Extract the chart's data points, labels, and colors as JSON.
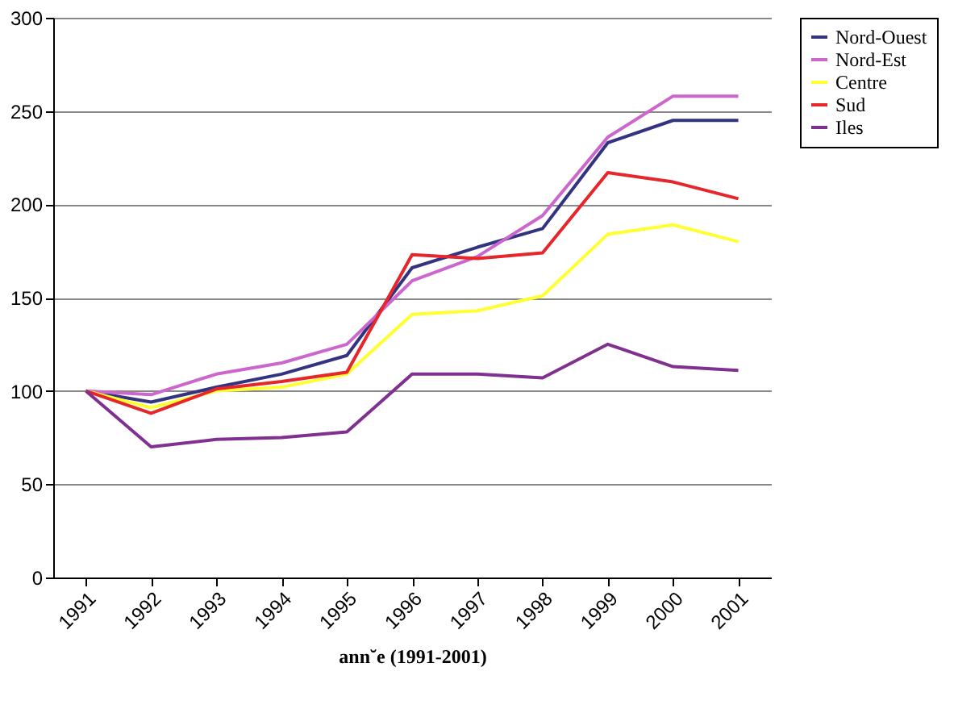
{
  "chart_data": {
    "type": "line",
    "xlabel": "ann˘e (1991-2001)",
    "categories": [
      "1991",
      "1992",
      "1993",
      "1994",
      "1995",
      "1996",
      "1997",
      "1998",
      "1999",
      "2000",
      "2001"
    ],
    "series": [
      {
        "name": "Nord-Ouest",
        "color": "#333380",
        "values": [
          100,
          94,
          102,
          109,
          119,
          166,
          177,
          187,
          233,
          245,
          245
        ]
      },
      {
        "name": "Nord-Est",
        "color": "#cc66cc",
        "values": [
          100,
          98,
          109,
          115,
          125,
          159,
          172,
          194,
          236,
          258,
          258
        ]
      },
      {
        "name": "Centre",
        "color": "#ffff33",
        "values": [
          100,
          91,
          100,
          102,
          109,
          141,
          143,
          151,
          184,
          189,
          180
        ]
      },
      {
        "name": "Sud",
        "color": "#e6262b",
        "values": [
          100,
          88,
          101,
          105,
          110,
          173,
          171,
          174,
          217,
          212,
          203
        ]
      },
      {
        "name": "Iles",
        "color": "#80308f",
        "values": [
          100,
          70,
          74,
          75,
          78,
          109,
          109,
          107,
          125,
          113,
          111
        ]
      }
    ],
    "ylim": [
      0,
      300
    ],
    "yticks": [
      0,
      50,
      100,
      150,
      200,
      250,
      300
    ],
    "grid": "y",
    "legend": "right",
    "marker": "none",
    "line_style": "solid"
  }
}
